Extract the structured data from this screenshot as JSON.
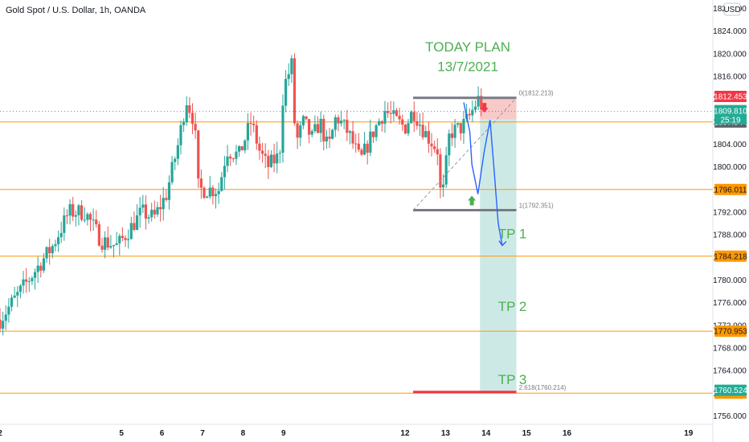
{
  "header": {
    "title": "Gold Spot / U.S. Dollar, 1h, OANDA"
  },
  "chart_data": {
    "type": "candlestick",
    "title": "Gold Spot / U.S. Dollar, 1h, OANDA",
    "currency": "USD",
    "ylim": [
      1754.5,
      1829.5
    ],
    "y_ticks": [
      1756,
      1760,
      1764,
      1768,
      1772,
      1776,
      1780,
      1784,
      1788,
      1792,
      1796,
      1800,
      1804,
      1808,
      1812,
      1816,
      1820,
      1824,
      1828
    ],
    "y_tick_labels": [
      "1756.000",
      "1760.000",
      "1764.000",
      "1768.000",
      "1772.000",
      "1776.000",
      "1780.000",
      "1784.000",
      "1788.000",
      "1792.000",
      "1796.000",
      "1800.000",
      "1804.000",
      "1808.000",
      "1812.000",
      "1816.000",
      "1820.000",
      "1824.000",
      "1828.000"
    ],
    "x_ticks": [
      {
        "label": "2",
        "t": 2
      },
      {
        "label": "5",
        "t": 5
      },
      {
        "label": "6",
        "t": 6
      },
      {
        "label": "7",
        "t": 7
      },
      {
        "label": "8",
        "t": 8
      },
      {
        "label": "9",
        "t": 9
      },
      {
        "label": "12",
        "t": 12
      },
      {
        "label": "13",
        "t": 13
      },
      {
        "label": "14",
        "t": 14
      },
      {
        "label": "15",
        "t": 15
      },
      {
        "label": "16",
        "t": 16
      },
      {
        "label": "19",
        "t": 19
      }
    ],
    "xlim": [
      2.0,
      19.6
    ],
    "candles_path": [
      [
        2.0,
        1773
      ],
      [
        2.4,
        1777
      ],
      [
        2.8,
        1781
      ],
      [
        3.3,
        1786
      ],
      [
        3.7,
        1792
      ],
      [
        4.1,
        1792
      ],
      [
        4.5,
        1787
      ],
      [
        4.9,
        1786
      ],
      [
        5.2,
        1789
      ],
      [
        5.5,
        1792
      ],
      [
        5.8,
        1791
      ],
      [
        6.1,
        1795
      ],
      [
        6.4,
        1804
      ],
      [
        6.6,
        1812
      ],
      [
        6.8,
        1808
      ],
      [
        6.9,
        1796
      ],
      [
        7.1,
        1796
      ],
      [
        7.4,
        1796
      ],
      [
        7.6,
        1803
      ],
      [
        7.9,
        1802
      ],
      [
        8.2,
        1808
      ],
      [
        8.4,
        1803
      ],
      [
        8.6,
        1800
      ],
      [
        8.9,
        1802
      ],
      [
        9.0,
        1814
      ],
      [
        9.2,
        1818
      ],
      [
        9.3,
        1804
      ],
      [
        9.5,
        1808
      ],
      [
        9.7,
        1805
      ],
      [
        9.9,
        1808
      ],
      [
        10.1,
        1803
      ],
      [
        10.3,
        1809
      ],
      [
        10.6,
        1806
      ],
      [
        10.9,
        1801
      ],
      [
        11.2,
        1806
      ],
      [
        11.5,
        1810
      ],
      [
        11.8,
        1808
      ],
      [
        12.0,
        1807
      ],
      [
        12.2,
        1810
      ],
      [
        12.5,
        1806
      ],
      [
        12.8,
        1803
      ],
      [
        12.9,
        1793
      ],
      [
        13.1,
        1806
      ],
      [
        13.4,
        1807
      ],
      [
        13.6,
        1809
      ],
      [
        13.8,
        1812
      ],
      [
        13.95,
        1810
      ]
    ],
    "current_price": "1809.810",
    "countdown": "25:19",
    "hlines": [
      {
        "price": 1807.953,
        "label": "1807.953",
        "color": "#ff9800"
      },
      {
        "price": 1796.011,
        "label": "1796.011",
        "color": "#ff9800"
      },
      {
        "price": 1784.218,
        "label": "1784.218",
        "color": "#ff9800"
      },
      {
        "price": 1770.953,
        "label": "1770.953",
        "color": "#ff9800"
      },
      {
        "price": 1760.013,
        "label": "1760.013",
        "color": "#ff9800"
      }
    ],
    "badges": [
      {
        "price": 1812.453,
        "label": "1812.453",
        "color": "#f23645"
      },
      {
        "price": 1807.944,
        "label": "1807.944",
        "color": "#5d606b"
      },
      {
        "price": 1760.524,
        "label": "1760.524",
        "color": "#22ab94"
      }
    ],
    "fib": {
      "level0": {
        "price": 1812.213,
        "label": "0(1812.213)"
      },
      "level1": {
        "price": 1792.351,
        "label": "1(1792.351)"
      },
      "ext": {
        "price": 1760.214,
        "label": "2.618(1760.214)"
      },
      "t_start": 12.2,
      "t_end": 14.75
    },
    "position": {
      "entry": 1808.4,
      "stop": 1812.213,
      "target": 1760.214,
      "t_start": 13.85,
      "t_end": 14.75,
      "loss_color": "#f8c9c9",
      "profit_color": "#cde9e6"
    },
    "scenario_path": [
      [
        13.45,
        1811.4
      ],
      [
        13.6,
        1806.2
      ],
      [
        13.65,
        1800.5
      ],
      [
        13.8,
        1795.2
      ],
      [
        13.95,
        1802.5
      ],
      [
        14.1,
        1808.3
      ],
      [
        14.2,
        1799.4
      ],
      [
        14.3,
        1790.1
      ],
      [
        14.4,
        1786.1
      ]
    ],
    "annotations": [
      {
        "text": "TODAY PLAN",
        "t": 13.55,
        "price": 1820.4,
        "size": 17
      },
      {
        "text": "13/7/2021",
        "t": 13.55,
        "price": 1816.9,
        "size": 17
      },
      {
        "text": "TP 1",
        "t": 14.65,
        "price": 1787.4,
        "size": 17
      },
      {
        "text": "TP 2",
        "t": 14.65,
        "price": 1774.5,
        "size": 17
      },
      {
        "text": "TP 3",
        "t": 14.65,
        "price": 1761.6,
        "size": 17
      }
    ],
    "arrows": [
      {
        "kind": "down",
        "color": "#f23645",
        "t": 13.96,
        "price": 1810.3
      },
      {
        "kind": "up",
        "color": "#4caf50",
        "t": 13.65,
        "price": 1794.2
      }
    ],
    "colors": {
      "up": "#26a69a",
      "down": "#ef5350",
      "grid": "#ffffff",
      "axis_text": "#131722"
    },
    "grid": false
  }
}
